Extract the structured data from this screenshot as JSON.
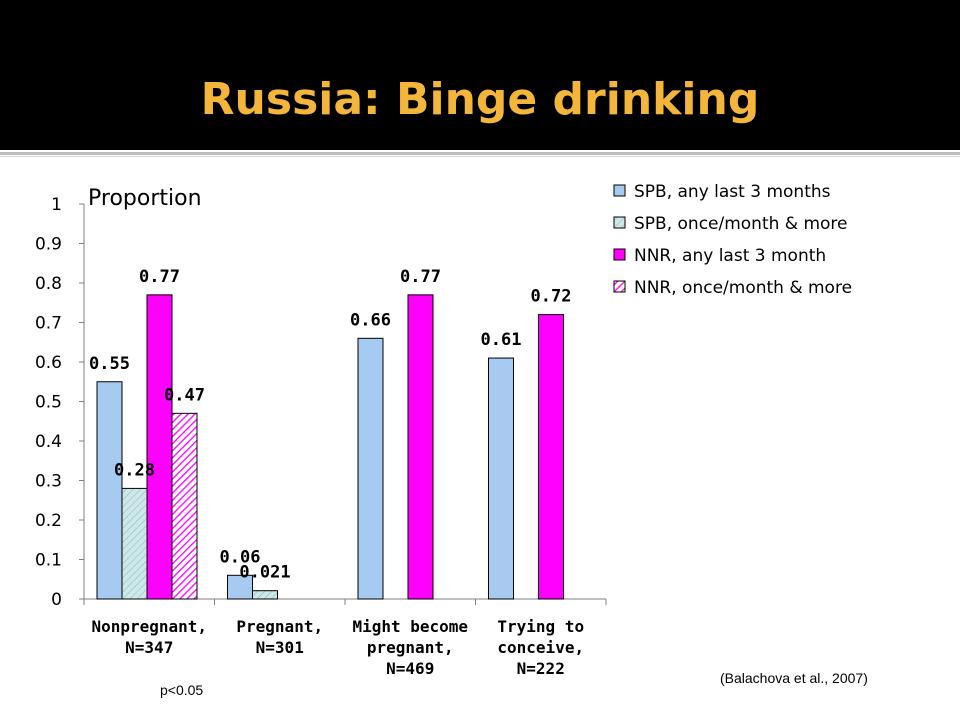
{
  "slide": {
    "title": "Russia: Binge drinking",
    "citation": "(Balachova et al., 2007)",
    "pvalue_note": "p<0.05"
  },
  "chart_data": {
    "type": "bar",
    "ylabel": "Proportion",
    "ylim": [
      0,
      1
    ],
    "yticks": [
      "0",
      "0.1",
      "0.2",
      "0.3",
      "0.4",
      "0.5",
      "0.6",
      "0.7",
      "0.8",
      "0.9",
      "1"
    ],
    "categories": [
      [
        "Nonpregnant,",
        "N=347"
      ],
      [
        "Pregnant,",
        "N=301"
      ],
      [
        "Might become",
        "pregnant,",
        "N=469"
      ],
      [
        "Trying to",
        "conceive,",
        "N=222"
      ]
    ],
    "legend_position": "top-right",
    "series": [
      {
        "name": "SPB, any last 3 months",
        "color": "#a6caf0",
        "pattern": "solid",
        "values": [
          0.55,
          0.06,
          0.66,
          0.61
        ],
        "labels": [
          "0.55",
          "0.06",
          "0.66",
          "0.61"
        ]
      },
      {
        "name": "SPB, once/month & more",
        "color": "#cce8e8",
        "pattern": "hatch-light",
        "values": [
          0.28,
          0.021,
          null,
          null
        ],
        "labels": [
          "0.28",
          "0.021",
          "",
          ""
        ]
      },
      {
        "name": "NNR, any last 3 month",
        "color": "#ff00ff",
        "pattern": "solid",
        "values": [
          0.77,
          null,
          0.77,
          0.72
        ],
        "labels": [
          "0.77",
          "",
          "0.77",
          "0.72"
        ]
      },
      {
        "name": "NNR, once/month & more",
        "color": "#ff00ff",
        "pattern": "hatch-magenta",
        "values": [
          0.47,
          null,
          null,
          null
        ],
        "labels": [
          "0.47",
          "",
          "",
          ""
        ]
      }
    ]
  }
}
